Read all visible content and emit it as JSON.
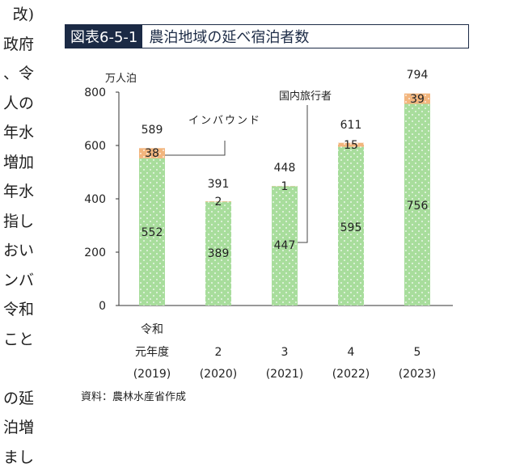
{
  "left_text_fragments": [
    "改)",
    "政府",
    "、令",
    "人の",
    "年水",
    "増加",
    "年水",
    "指し",
    "おい",
    "ンバ",
    "令和",
    "こと",
    "",
    "の延",
    "泊増",
    "まし"
  ],
  "figure": {
    "tag": "図表6-5-1",
    "title": "農泊地域の延べ宿泊者数"
  },
  "source": "資料：農林水産省作成",
  "colors": {
    "domestic": "#a8dd9c",
    "inbound": "#f2b57d",
    "tag_bg": "#1b2a45"
  },
  "chart_data": {
    "type": "bar",
    "stacked": true,
    "unit_label": "万人泊",
    "ylim": [
      0,
      800
    ],
    "yticks": [
      0,
      200,
      400,
      600,
      800
    ],
    "grid": false,
    "categories": [
      {
        "lines": [
          "令和",
          "元年度",
          "(2019)"
        ]
      },
      {
        "lines": [
          "",
          "2",
          "(2020)"
        ]
      },
      {
        "lines": [
          "",
          "3",
          "(2021)"
        ]
      },
      {
        "lines": [
          "",
          "4",
          "(2022)"
        ]
      },
      {
        "lines": [
          "",
          "5",
          "(2023)"
        ]
      }
    ],
    "series": [
      {
        "name": "国内旅行者",
        "values": [
          552,
          389,
          447,
          595,
          756
        ]
      },
      {
        "name": "インバウンド",
        "values": [
          38,
          2,
          1,
          15,
          39
        ]
      }
    ],
    "totals": [
      589,
      391,
      448,
      611,
      794
    ]
  }
}
